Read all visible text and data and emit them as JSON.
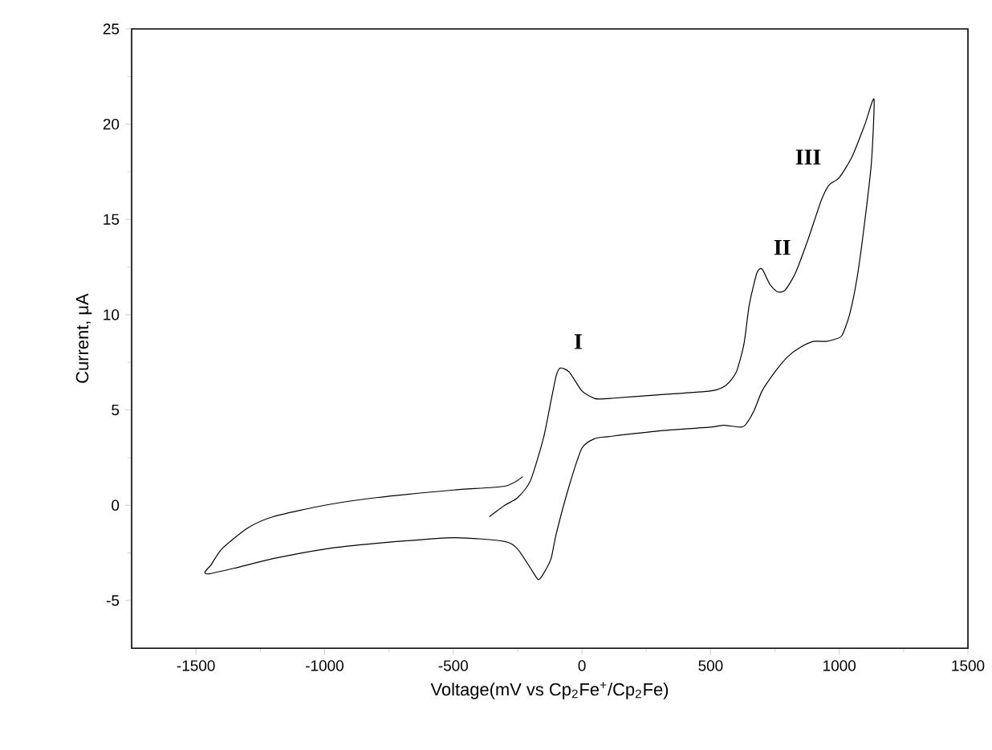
{
  "chart_data": {
    "type": "line",
    "xlabel": "Voltage(mV vs Cp$_{2}$Fe$^{+}$/Cp$_{2}$Fe)",
    "ylabel": "Current, μA",
    "xlim": [
      -1750,
      1500
    ],
    "ylim": [
      -7.5,
      25
    ],
    "xticks": [
      -1500,
      -1000,
      -500,
      0,
      500,
      1000,
      1500
    ],
    "yticks": [
      -5,
      0,
      5,
      10,
      15,
      20,
      25
    ],
    "grid": false,
    "marker": "none",
    "line_style": "solid",
    "series": [
      {
        "color": "#000000",
        "x": [
          -360,
          -300,
          -250,
          -200,
          -150,
          -120,
          -100,
          -84,
          -50,
          0,
          50,
          100,
          300,
          500,
          560,
          600,
          630,
          650,
          680,
          700,
          730,
          760,
          790,
          830,
          880,
          930,
          960,
          1000,
          1050,
          1100,
          1135,
          1125,
          1100,
          1070,
          1040,
          1010,
          980,
          950,
          900,
          850,
          800,
          750,
          700,
          670,
          640,
          620,
          550,
          500,
          300,
          100,
          50,
          0,
          -50,
          -100,
          -120,
          -150,
          -170,
          -200,
          -250,
          -300,
          -500,
          -800,
          -1000,
          -1200,
          -1350,
          -1450,
          -1465,
          -1440,
          -1400,
          -1300,
          -1200,
          -1000,
          -800,
          -500,
          -300,
          -230
        ],
        "values": [
          -0.6,
          0,
          0.4,
          1.3,
          3.5,
          5.5,
          6.8,
          7.2,
          7.0,
          6.0,
          5.6,
          5.6,
          5.8,
          6.0,
          6.3,
          7.0,
          8.5,
          10.5,
          12.2,
          12.4,
          11.6,
          11.2,
          11.3,
          12.2,
          14,
          16,
          16.8,
          17.2,
          18.3,
          20,
          21.3,
          18,
          15,
          12,
          10,
          8.9,
          8.7,
          8.6,
          8.6,
          8.3,
          7.8,
          7.0,
          6.0,
          5.0,
          4.3,
          4.1,
          4.2,
          4.1,
          3.9,
          3.6,
          3.5,
          3.0,
          1.0,
          -1.5,
          -2.8,
          -3.6,
          -3.9,
          -3.3,
          -2.3,
          -1.9,
          -1.7,
          -2.0,
          -2.3,
          -2.8,
          -3.3,
          -3.6,
          -3.5,
          -3.1,
          -2.3,
          -1.2,
          -0.6,
          0,
          0.4,
          0.8,
          1.0,
          1.5
        ]
      }
    ],
    "annotations": [
      "I",
      "II",
      "III"
    ]
  }
}
